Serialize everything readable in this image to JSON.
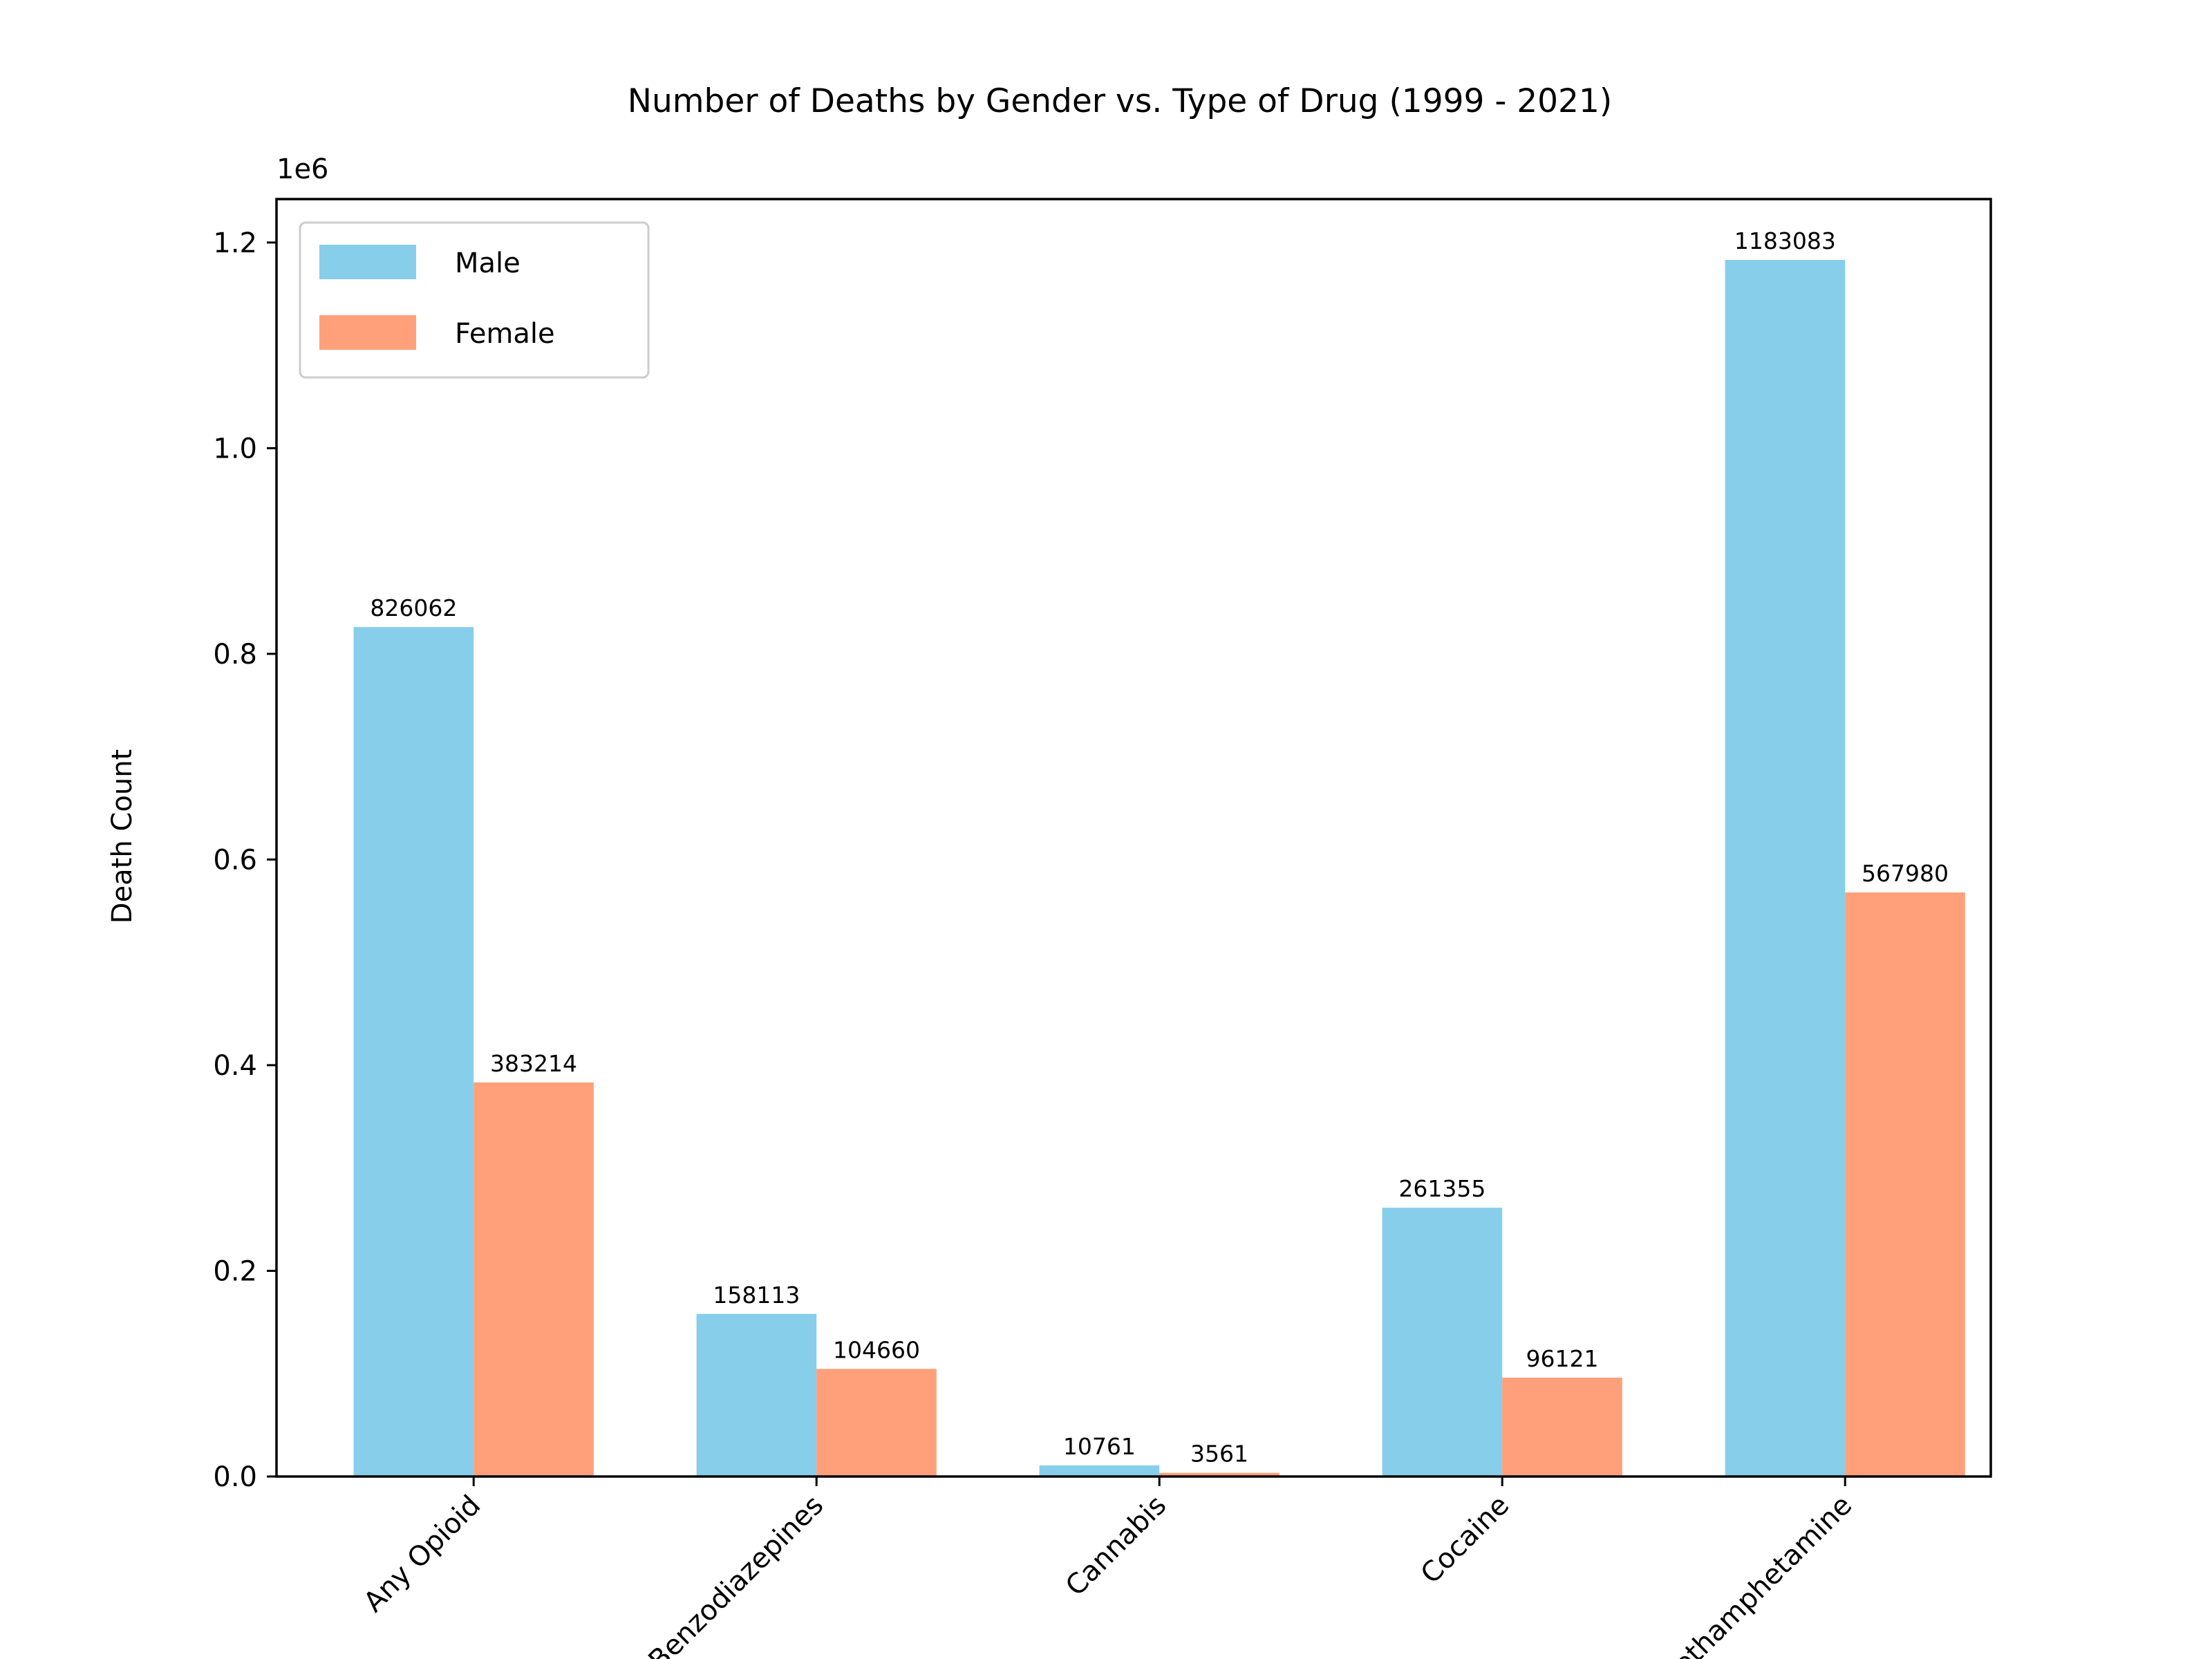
{
  "chart_data": {
    "type": "bar",
    "title": "Number of Deaths by Gender vs. Type of Drug (1999 - 2021)",
    "xlabel": "",
    "ylabel": "Death Count",
    "y_offset_text": "1e6",
    "categories": [
      "Any Opioid",
      "Benzodiazepines",
      "Cannabis",
      "Cocaine",
      "Methamphetamine"
    ],
    "series": [
      {
        "name": "Male",
        "color": "#87CEEB",
        "values": [
          826062,
          158113,
          10761,
          261355,
          1183083
        ]
      },
      {
        "name": "Female",
        "color": "#FFA07A",
        "values": [
          383214,
          104660,
          3561,
          96121,
          567980
        ]
      }
    ],
    "ylim": [
      0,
      1242237
    ],
    "yticks": [
      0,
      200000,
      400000,
      600000,
      800000,
      1000000,
      1200000
    ],
    "ytick_labels": [
      "0.0",
      "0.2",
      "0.4",
      "0.6",
      "0.8",
      "1.0",
      "1.2"
    ],
    "x_tick_rotation": 45,
    "legend_position": "top-left",
    "grid": false
  }
}
